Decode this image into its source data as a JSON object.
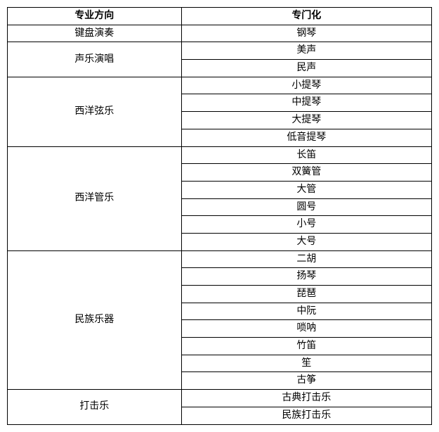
{
  "table": {
    "headers": {
      "major": "专业方向",
      "spec": "专门化"
    },
    "groups": [
      {
        "major": "键盘演奏",
        "items": [
          "钢琴"
        ]
      },
      {
        "major": "声乐演唱",
        "items": [
          "美声",
          "民声"
        ]
      },
      {
        "major": "西洋弦乐",
        "items": [
          "小提琴",
          "中提琴",
          "大提琴",
          "低音提琴"
        ]
      },
      {
        "major": "西洋管乐",
        "items": [
          "长笛",
          "双簧管",
          "大管",
          "圆号",
          "小号",
          "大号"
        ]
      },
      {
        "major": "民族乐器",
        "items": [
          "二胡",
          "扬琴",
          "琵琶",
          "中阮",
          "唢呐",
          "竹笛",
          "笙",
          "古筝"
        ]
      },
      {
        "major": "打击乐",
        "items": [
          "古典打击乐",
          "民族打击乐"
        ]
      }
    ],
    "border_color": "#000000",
    "background_color": "#ffffff",
    "font_size": 14,
    "col_widths": [
      "41%",
      "59%"
    ]
  }
}
